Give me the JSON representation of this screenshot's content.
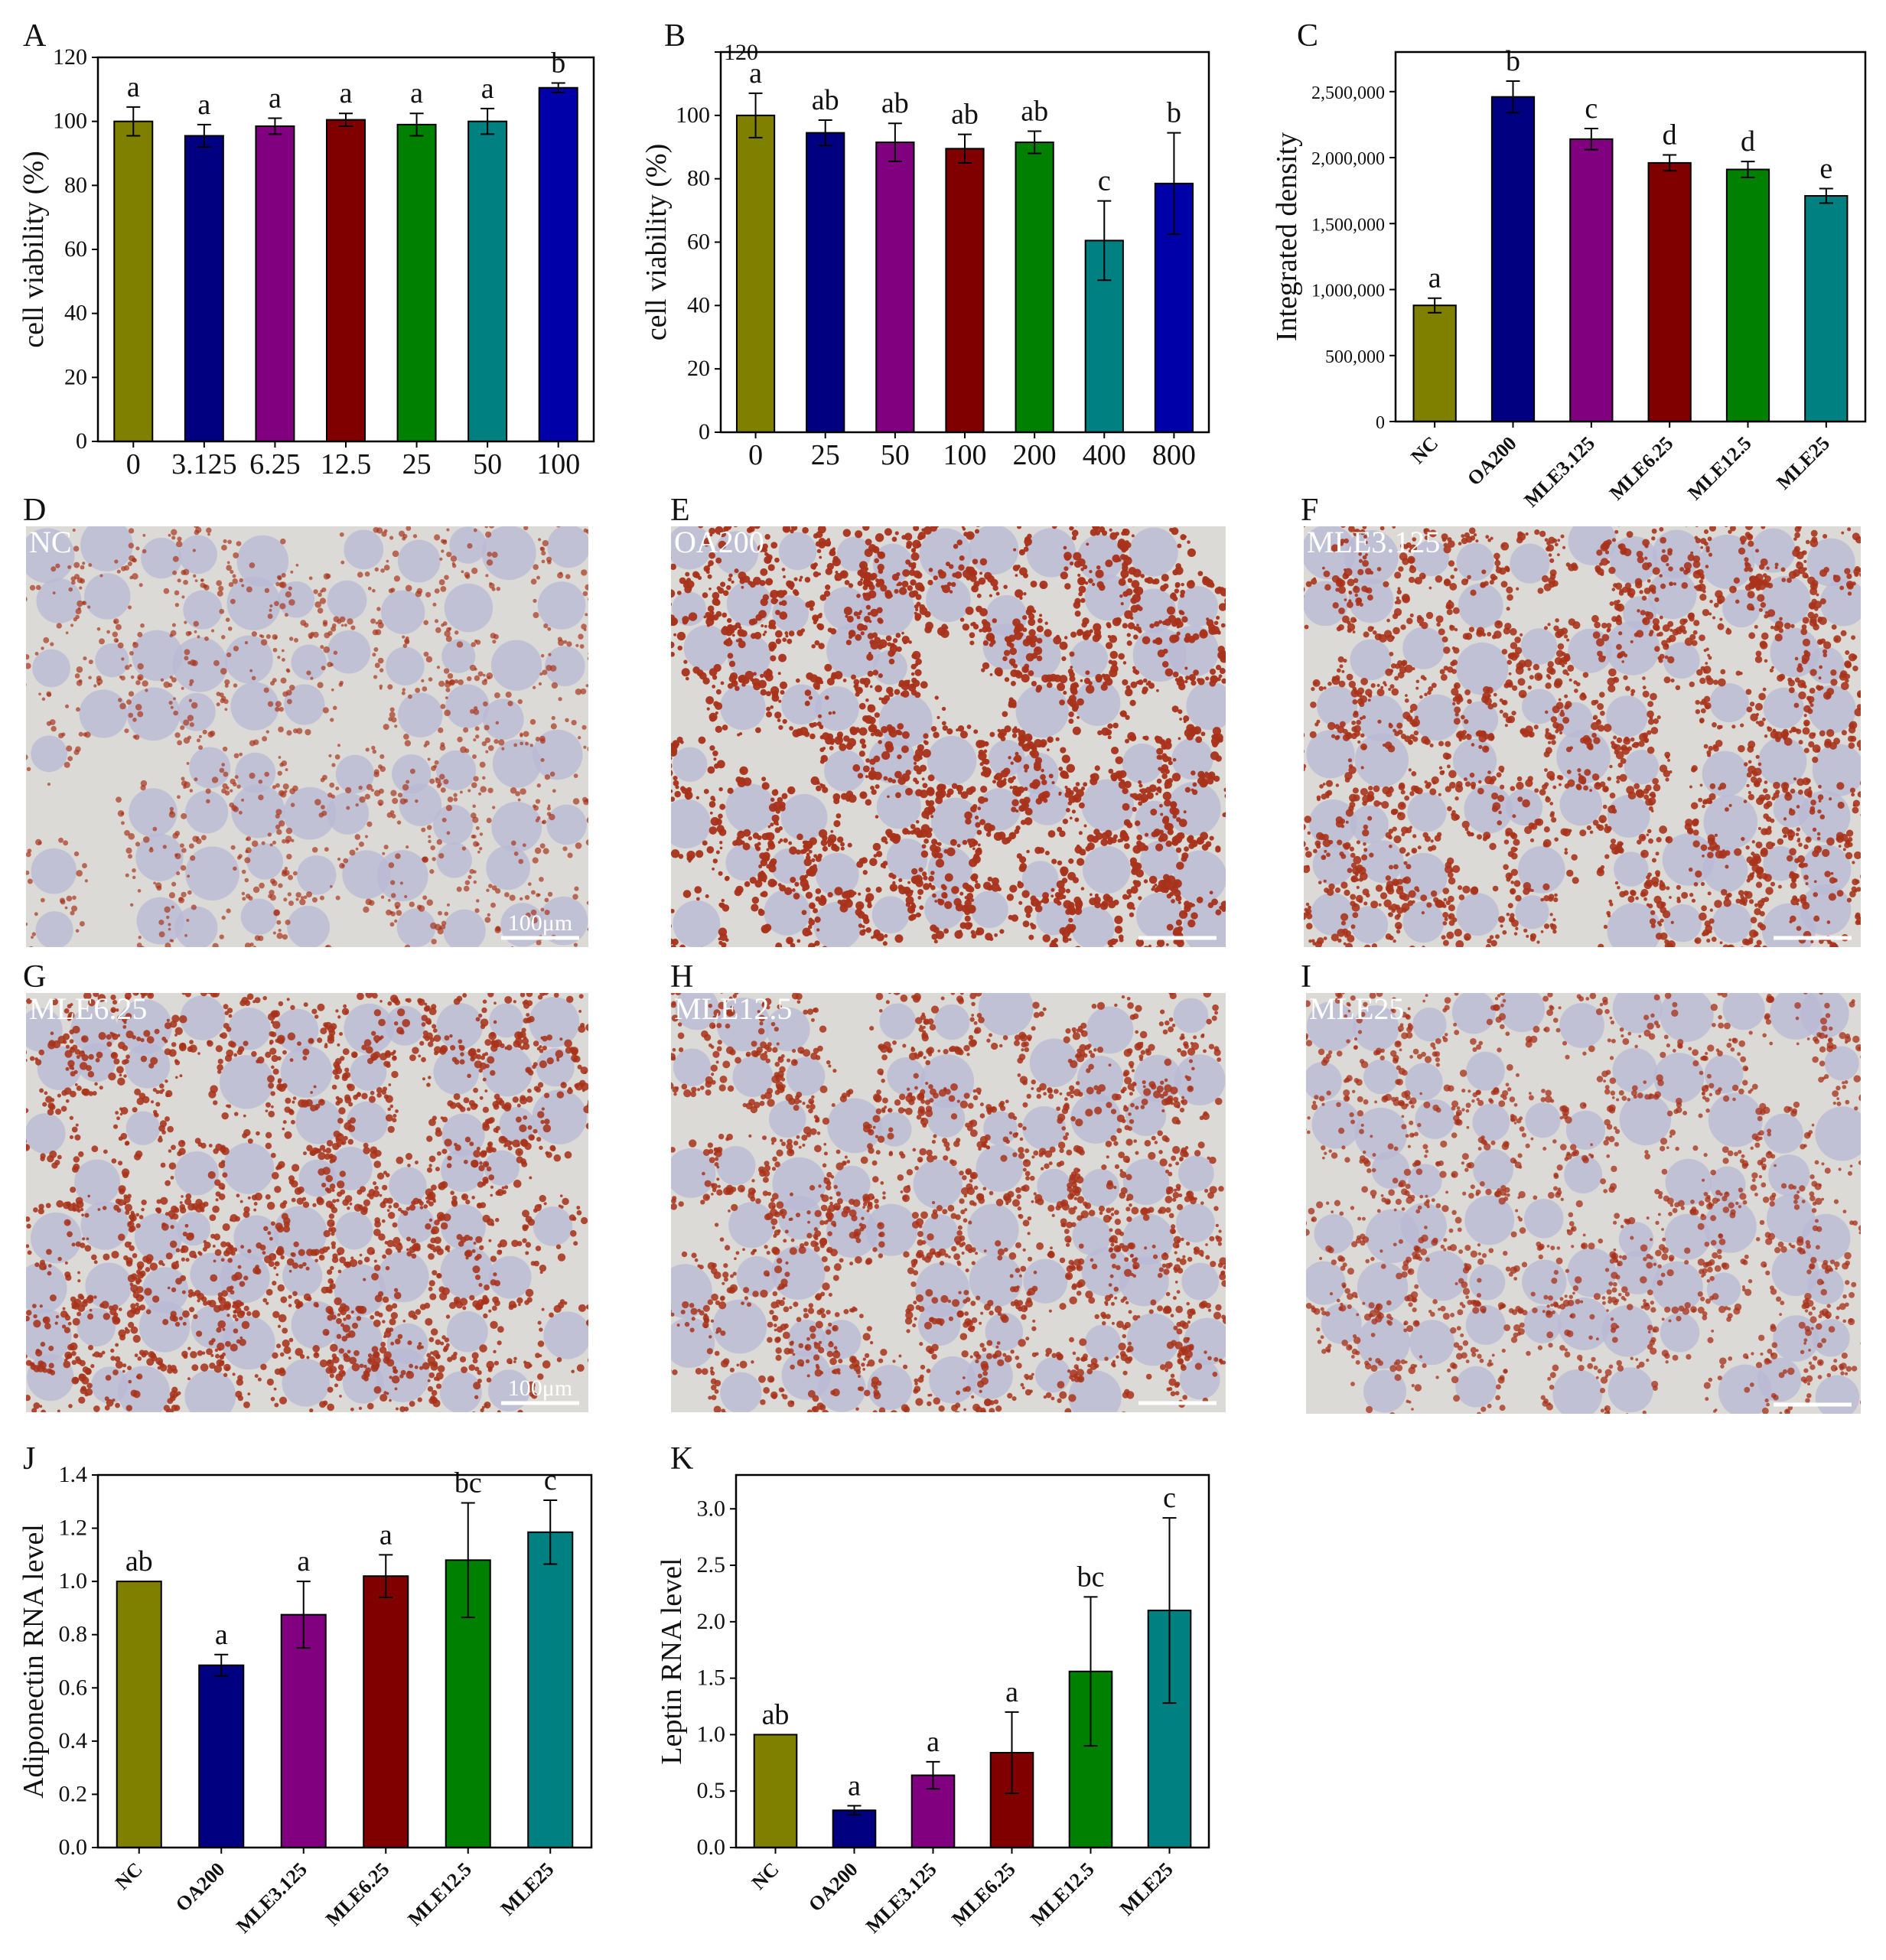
{
  "colors": [
    "#808000",
    "#000080",
    "#800080",
    "#800000",
    "#008000",
    "#008080",
    "#0000a8"
  ],
  "micro_colors": {
    "background": "#dcdad6",
    "cell": "#b8b8d6",
    "droplet": "#a8321a"
  },
  "chart_data": [
    {
      "panel": "A",
      "type": "bar",
      "categories": [
        "0",
        "3.125",
        "6.25",
        "12.5",
        "25",
        "50",
        "100"
      ],
      "values": [
        100,
        95.5,
        98.5,
        100.5,
        99,
        100,
        110.5
      ],
      "errors": [
        4.5,
        3.5,
        2.5,
        2,
        3.5,
        4,
        1.5
      ],
      "significance": [
        "a",
        "a",
        "a",
        "a",
        "a",
        "a",
        "b"
      ],
      "ylabel": "cell viability (%)",
      "ylim": [
        0,
        120
      ],
      "yticks": [
        "0",
        "20",
        "40",
        "60",
        "80",
        "100",
        "120"
      ],
      "grid": false,
      "rotate_labels": false
    },
    {
      "panel": "B",
      "type": "bar",
      "categories": [
        "0",
        "25",
        "50",
        "100",
        "200",
        "400",
        "800"
      ],
      "values": [
        100,
        94.5,
        91.5,
        89.5,
        91.5,
        60.5,
        78.5
      ],
      "errors": [
        7,
        4,
        6,
        4.5,
        3.5,
        12.5,
        16
      ],
      "significance": [
        "a",
        "ab",
        "ab",
        "ab",
        "ab",
        "c",
        "b"
      ],
      "ylabel": "cell viability (%)",
      "ylim": [
        0,
        120
      ],
      "yticks": [
        "0",
        "20",
        "40",
        "60",
        "80",
        "100",
        "120"
      ],
      "grid": false,
      "rotate_labels": false
    },
    {
      "panel": "C",
      "type": "bar",
      "categories": [
        "NC",
        "OA200",
        "MLE3.125",
        "MLE6.25",
        "MLE12.5",
        "MLE25"
      ],
      "values": [
        880000,
        2460000,
        2140000,
        1960000,
        1910000,
        1710000
      ],
      "errors": [
        55000,
        120000,
        80000,
        60000,
        60000,
        55000
      ],
      "significance": [
        "a",
        "b",
        "c",
        "d",
        "d",
        "e"
      ],
      "ylabel": "Integrated density",
      "ylim": [
        0,
        2800000
      ],
      "yticks": [
        "0",
        "500,000",
        "1,000,000",
        "1,500,000",
        "2,000,000",
        "2,500,000"
      ],
      "grid": false,
      "rotate_labels": true
    },
    {
      "panel": "J",
      "type": "bar",
      "categories": [
        "NC",
        "OA200",
        "MLE3.125",
        "MLE6.25",
        "MLE12.5",
        "MLE25"
      ],
      "values": [
        1.0,
        0.685,
        0.875,
        1.02,
        1.08,
        1.185
      ],
      "errors": [
        0,
        0.04,
        0.125,
        0.08,
        0.215,
        0.12
      ],
      "significance": [
        "ab",
        "a",
        "a",
        "a",
        "bc",
        "c"
      ],
      "ylabel": "Adiponectin RNA level",
      "ylim": [
        0,
        1.4
      ],
      "yticks": [
        "0.0",
        "0.2",
        "0.4",
        "0.6",
        "0.8",
        "1.0",
        "1.2",
        "1.4"
      ],
      "grid": false,
      "rotate_labels": true
    },
    {
      "panel": "K",
      "type": "bar",
      "categories": [
        "NC",
        "OA200",
        "MLE3.125",
        "MLE6.25",
        "MLE12.5",
        "MLE25"
      ],
      "values": [
        1.0,
        0.33,
        0.64,
        0.84,
        1.56,
        2.1
      ],
      "errors": [
        0,
        0.04,
        0.12,
        0.36,
        0.66,
        0.82
      ],
      "significance": [
        "ab",
        "a",
        "a",
        "a",
        "bc",
        "c"
      ],
      "ylabel": "Leptin RNA level",
      "ylim": [
        0,
        3.3
      ],
      "yticks": [
        "0.0",
        "0.5",
        "1.0",
        "1.5",
        "2.0",
        "2.5",
        "3.0"
      ],
      "grid": false,
      "rotate_labels": true
    }
  ],
  "micrographs": [
    {
      "panel": "D",
      "label": "NC",
      "scale_text": "100μm",
      "stain": 0.35
    },
    {
      "panel": "E",
      "label": "OA200",
      "scale_text": "",
      "stain": 1.0
    },
    {
      "panel": "F",
      "label": "MLE3.125",
      "scale_text": "",
      "stain": 0.85
    },
    {
      "panel": "G",
      "label": "MLE6.25",
      "scale_text": "100μm",
      "stain": 0.8
    },
    {
      "panel": "H",
      "label": "MLE12.5",
      "scale_text": "",
      "stain": 0.75
    },
    {
      "panel": "I",
      "label": "MLE25",
      "scale_text": "",
      "stain": 0.55
    }
  ]
}
